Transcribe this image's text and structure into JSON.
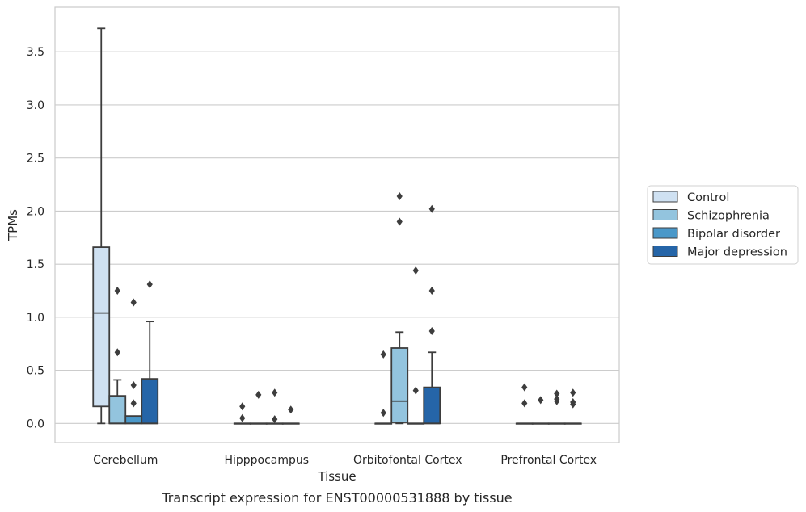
{
  "caption": "Transcript expression for ENST00000531888 by tissue",
  "chart_data": {
    "type": "boxplot",
    "title": "",
    "xlabel": "Tissue",
    "ylabel": "TPMs",
    "ylim": [
      -0.18,
      3.92
    ],
    "yticks": [
      0.0,
      0.5,
      1.0,
      1.5,
      2.0,
      2.5,
      3.0,
      3.5
    ],
    "ytick_labels": [
      "0.0",
      "0.5",
      "1.0",
      "1.5",
      "2.0",
      "2.5",
      "3.0",
      "3.5"
    ],
    "grid": "horizontal",
    "legend_placement": "right",
    "categories": [
      "Cerebellum",
      "Hipppocampus",
      "Orbitofontal Cortex",
      "Prefrontal Cortex"
    ],
    "series": [
      {
        "name": "Control",
        "color": "#cfe1f2",
        "boxes": [
          {
            "whislo": 0.0,
            "q1": 0.16,
            "med": 1.04,
            "q3": 1.66,
            "whishi": 3.72,
            "fliers": []
          },
          {
            "whislo": 0.0,
            "q1": 0.0,
            "med": 0.0,
            "q3": 0.0,
            "whishi": 0.0,
            "fliers": [
              0.05,
              0.16
            ]
          },
          {
            "whislo": 0.0,
            "q1": 0.0,
            "med": 0.0,
            "q3": 0.0,
            "whishi": 0.0,
            "fliers": [
              0.1,
              0.65
            ]
          },
          {
            "whislo": 0.0,
            "q1": 0.0,
            "med": 0.0,
            "q3": 0.0,
            "whishi": 0.0,
            "fliers": [
              0.19,
              0.34
            ]
          }
        ]
      },
      {
        "name": "Schizophrenia",
        "color": "#93c4de",
        "boxes": [
          {
            "whislo": 0.0,
            "q1": 0.0,
            "med": 0.0,
            "q3": 0.26,
            "whishi": 0.41,
            "fliers": [
              0.67,
              1.25
            ]
          },
          {
            "whislo": 0.0,
            "q1": 0.0,
            "med": 0.0,
            "q3": 0.0,
            "whishi": 0.0,
            "fliers": [
              0.27
            ]
          },
          {
            "whislo": 0.0,
            "q1": 0.01,
            "med": 0.21,
            "q3": 0.71,
            "whishi": 0.86,
            "fliers": [
              1.9,
              2.14
            ]
          },
          {
            "whislo": 0.0,
            "q1": 0.0,
            "med": 0.0,
            "q3": 0.0,
            "whishi": 0.0,
            "fliers": [
              0.22
            ]
          }
        ]
      },
      {
        "name": "Bipolar disorder",
        "color": "#4a98c9",
        "boxes": [
          {
            "whislo": 0.0,
            "q1": 0.0,
            "med": 0.0,
            "q3": 0.07,
            "whishi": 0.07,
            "fliers": [
              0.19,
              0.36,
              1.14
            ]
          },
          {
            "whislo": 0.0,
            "q1": 0.0,
            "med": 0.0,
            "q3": 0.0,
            "whishi": 0.0,
            "fliers": [
              0.04,
              0.29
            ]
          },
          {
            "whislo": 0.0,
            "q1": 0.0,
            "med": 0.0,
            "q3": 0.0,
            "whishi": 0.0,
            "fliers": [
              0.31,
              1.44
            ]
          },
          {
            "whislo": 0.0,
            "q1": 0.0,
            "med": 0.0,
            "q3": 0.0,
            "whishi": 0.0,
            "fliers": [
              0.21,
              0.23,
              0.28
            ]
          }
        ]
      },
      {
        "name": "Major depression",
        "color": "#2565a8",
        "boxes": [
          {
            "whislo": 0.0,
            "q1": 0.0,
            "med": 0.0,
            "q3": 0.42,
            "whishi": 0.96,
            "fliers": [
              1.31
            ]
          },
          {
            "whislo": 0.0,
            "q1": 0.0,
            "med": 0.0,
            "q3": 0.0,
            "whishi": 0.0,
            "fliers": [
              0.13
            ]
          },
          {
            "whislo": 0.0,
            "q1": 0.0,
            "med": 0.0,
            "q3": 0.34,
            "whishi": 0.67,
            "fliers": [
              0.87,
              1.25,
              2.02
            ]
          },
          {
            "whislo": 0.0,
            "q1": 0.0,
            "med": 0.0,
            "q3": 0.0,
            "whishi": 0.0,
            "fliers": [
              0.18,
              0.2,
              0.29
            ]
          }
        ]
      }
    ]
  }
}
